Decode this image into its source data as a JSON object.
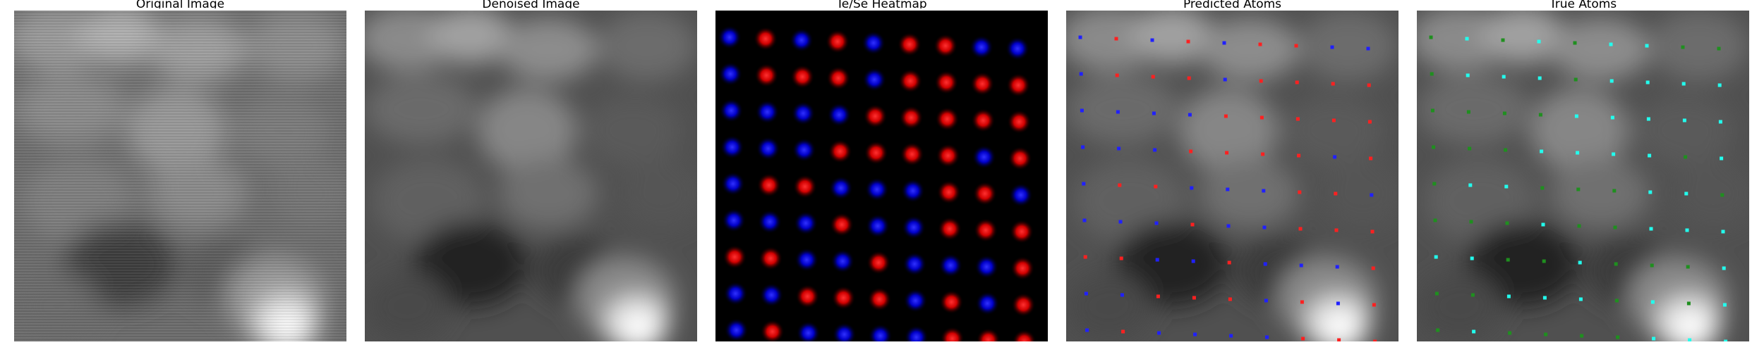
{
  "figure": {
    "panels": [
      {
        "id": "original",
        "title": "Original Image",
        "kind": "grayscale-stm-image"
      },
      {
        "id": "denoised",
        "title": "Denoised Image",
        "kind": "grayscale-stm-image"
      },
      {
        "id": "heatmap",
        "title": "Te/Se Heatmap",
        "kind": "class-heatmap"
      },
      {
        "id": "predicted",
        "title": "Predicted Atoms",
        "kind": "atom-overlay"
      },
      {
        "id": "true",
        "title": "True Atoms",
        "kind": "atom-overlay"
      }
    ],
    "colors": {
      "heatmap_class_a": "#e01414",
      "heatmap_class_b": "#1c1ce0",
      "predicted_class_a": "#ff2020",
      "predicted_class_b": "#2020ff",
      "true_class_a": "#22ffee",
      "true_class_b": "#1f8f1f"
    }
  }
}
